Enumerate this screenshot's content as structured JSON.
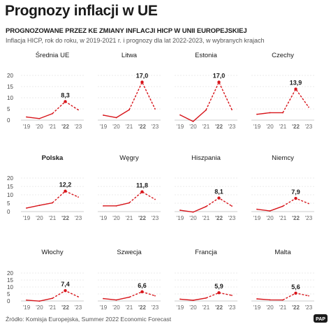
{
  "title": "Prognozy inflacji w UE",
  "subtitle": "PROGNOZOWANE PRZEZ KE ZMIANY INFLACJI HICP W UNII EUROPEJSKIEJ",
  "description": "Inflacja HICP, rok do roku, w 2019-2021 r. i prognozy dla lat 2022-2023, w wybranych krajach",
  "source": "Źródło: Komisja Europejska, Summer 2022 Economic Forecast",
  "logo_text": "PAP",
  "colors": {
    "line": "#d7141a",
    "text": "#1a1a1a",
    "grid": "#d8d8d8"
  },
  "chart_data": {
    "type": "line",
    "x_labels": [
      "'19",
      "'20",
      "'21",
      "'22",
      "'23"
    ],
    "y_ticks": [
      0,
      5,
      10,
      15,
      20
    ],
    "ylim": [
      0,
      20
    ],
    "grid": true,
    "note": "2019-2021 solid, 2022-2023 forecast dashed",
    "panels": [
      {
        "name": "Średnia UE",
        "values": [
          1.4,
          0.7,
          2.9,
          8.3,
          4.6
        ],
        "label": "8,3"
      },
      {
        "name": "Litwa",
        "values": [
          2.2,
          1.1,
          4.6,
          17.0,
          5.0
        ],
        "label": "17,0"
      },
      {
        "name": "Estonia",
        "values": [
          2.3,
          -0.6,
          4.5,
          17.0,
          4.7
        ],
        "label": "17,0"
      },
      {
        "name": "Czechy",
        "values": [
          2.6,
          3.3,
          3.3,
          13.9,
          5.8
        ],
        "label": "13,9"
      },
      {
        "name": "Polska",
        "values": [
          2.1,
          3.7,
          5.2,
          12.2,
          8.7
        ],
        "label": "12,2"
      },
      {
        "name": "Węgry",
        "values": [
          3.4,
          3.4,
          5.2,
          11.8,
          7.3
        ],
        "label": "11,8"
      },
      {
        "name": "Hiszpania",
        "values": [
          0.8,
          -0.3,
          3.0,
          8.1,
          3.3
        ],
        "label": "8,1"
      },
      {
        "name": "Niemcy",
        "values": [
          1.4,
          0.4,
          3.2,
          7.9,
          4.8
        ],
        "label": "7,9"
      },
      {
        "name": "Włochy",
        "values": [
          0.6,
          -0.1,
          1.9,
          7.4,
          3.0
        ],
        "label": "7,4"
      },
      {
        "name": "Szwecja",
        "values": [
          1.7,
          0.7,
          2.7,
          6.6,
          3.7
        ],
        "label": "6,6"
      },
      {
        "name": "Francja",
        "values": [
          1.3,
          0.5,
          2.1,
          5.9,
          4.0
        ],
        "label": "5,9"
      },
      {
        "name": "Malta",
        "values": [
          1.5,
          0.8,
          0.7,
          5.6,
          3.7
        ],
        "label": "5,6"
      }
    ]
  }
}
